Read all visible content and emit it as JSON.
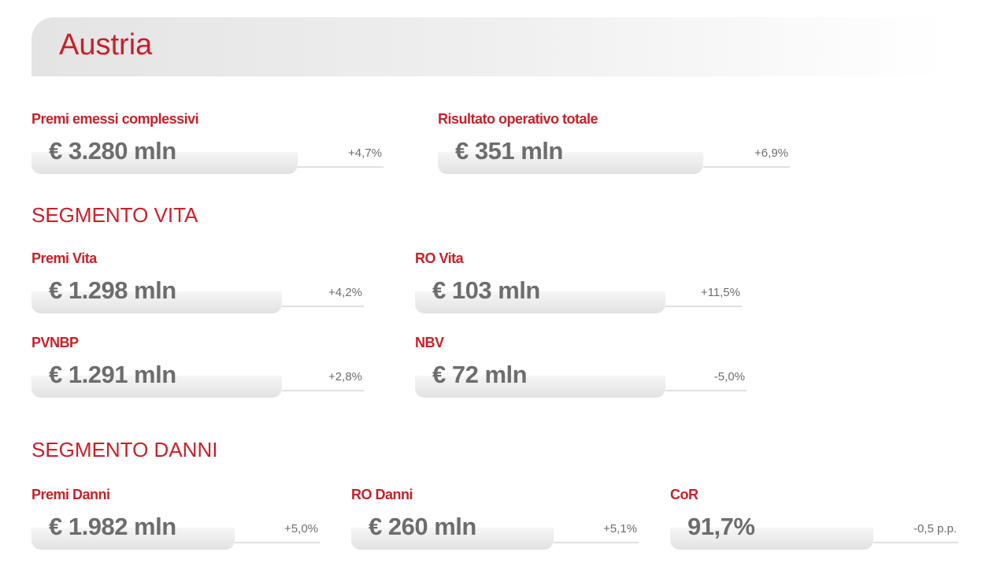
{
  "header": {
    "title": "Austria"
  },
  "overview": [
    {
      "label": "Premi emessi complessivi",
      "value": "€ 3.280 mln",
      "change": "+4,7%"
    },
    {
      "label": "Risultato operativo totale",
      "value": "€ 351 mln",
      "change": "+6,9%"
    }
  ],
  "sections": [
    {
      "title": "SEGMENTO VITA",
      "items": [
        {
          "label": "Premi Vita",
          "value": "€ 1.298 mln",
          "change": "+4,2%"
        },
        {
          "label": "RO Vita",
          "value": "€ 103 mln",
          "change": "+11,5%"
        },
        {
          "label": "PVNBP",
          "value": "€ 1.291 mln",
          "change": "+2,8%"
        },
        {
          "label": "NBV",
          "value": "€ 72 mln",
          "change": "-5,0%"
        }
      ]
    },
    {
      "title": "SEGMENTO DANNI",
      "items": [
        {
          "label": "Premi Danni",
          "value": "€ 1.982 mln",
          "change": "+5,0%"
        },
        {
          "label": "RO Danni",
          "value": "€ 260 mln",
          "change": "+5,1%"
        },
        {
          "label": "CoR",
          "value": "91,7%",
          "change": "-0,5 p.p."
        }
      ]
    }
  ]
}
